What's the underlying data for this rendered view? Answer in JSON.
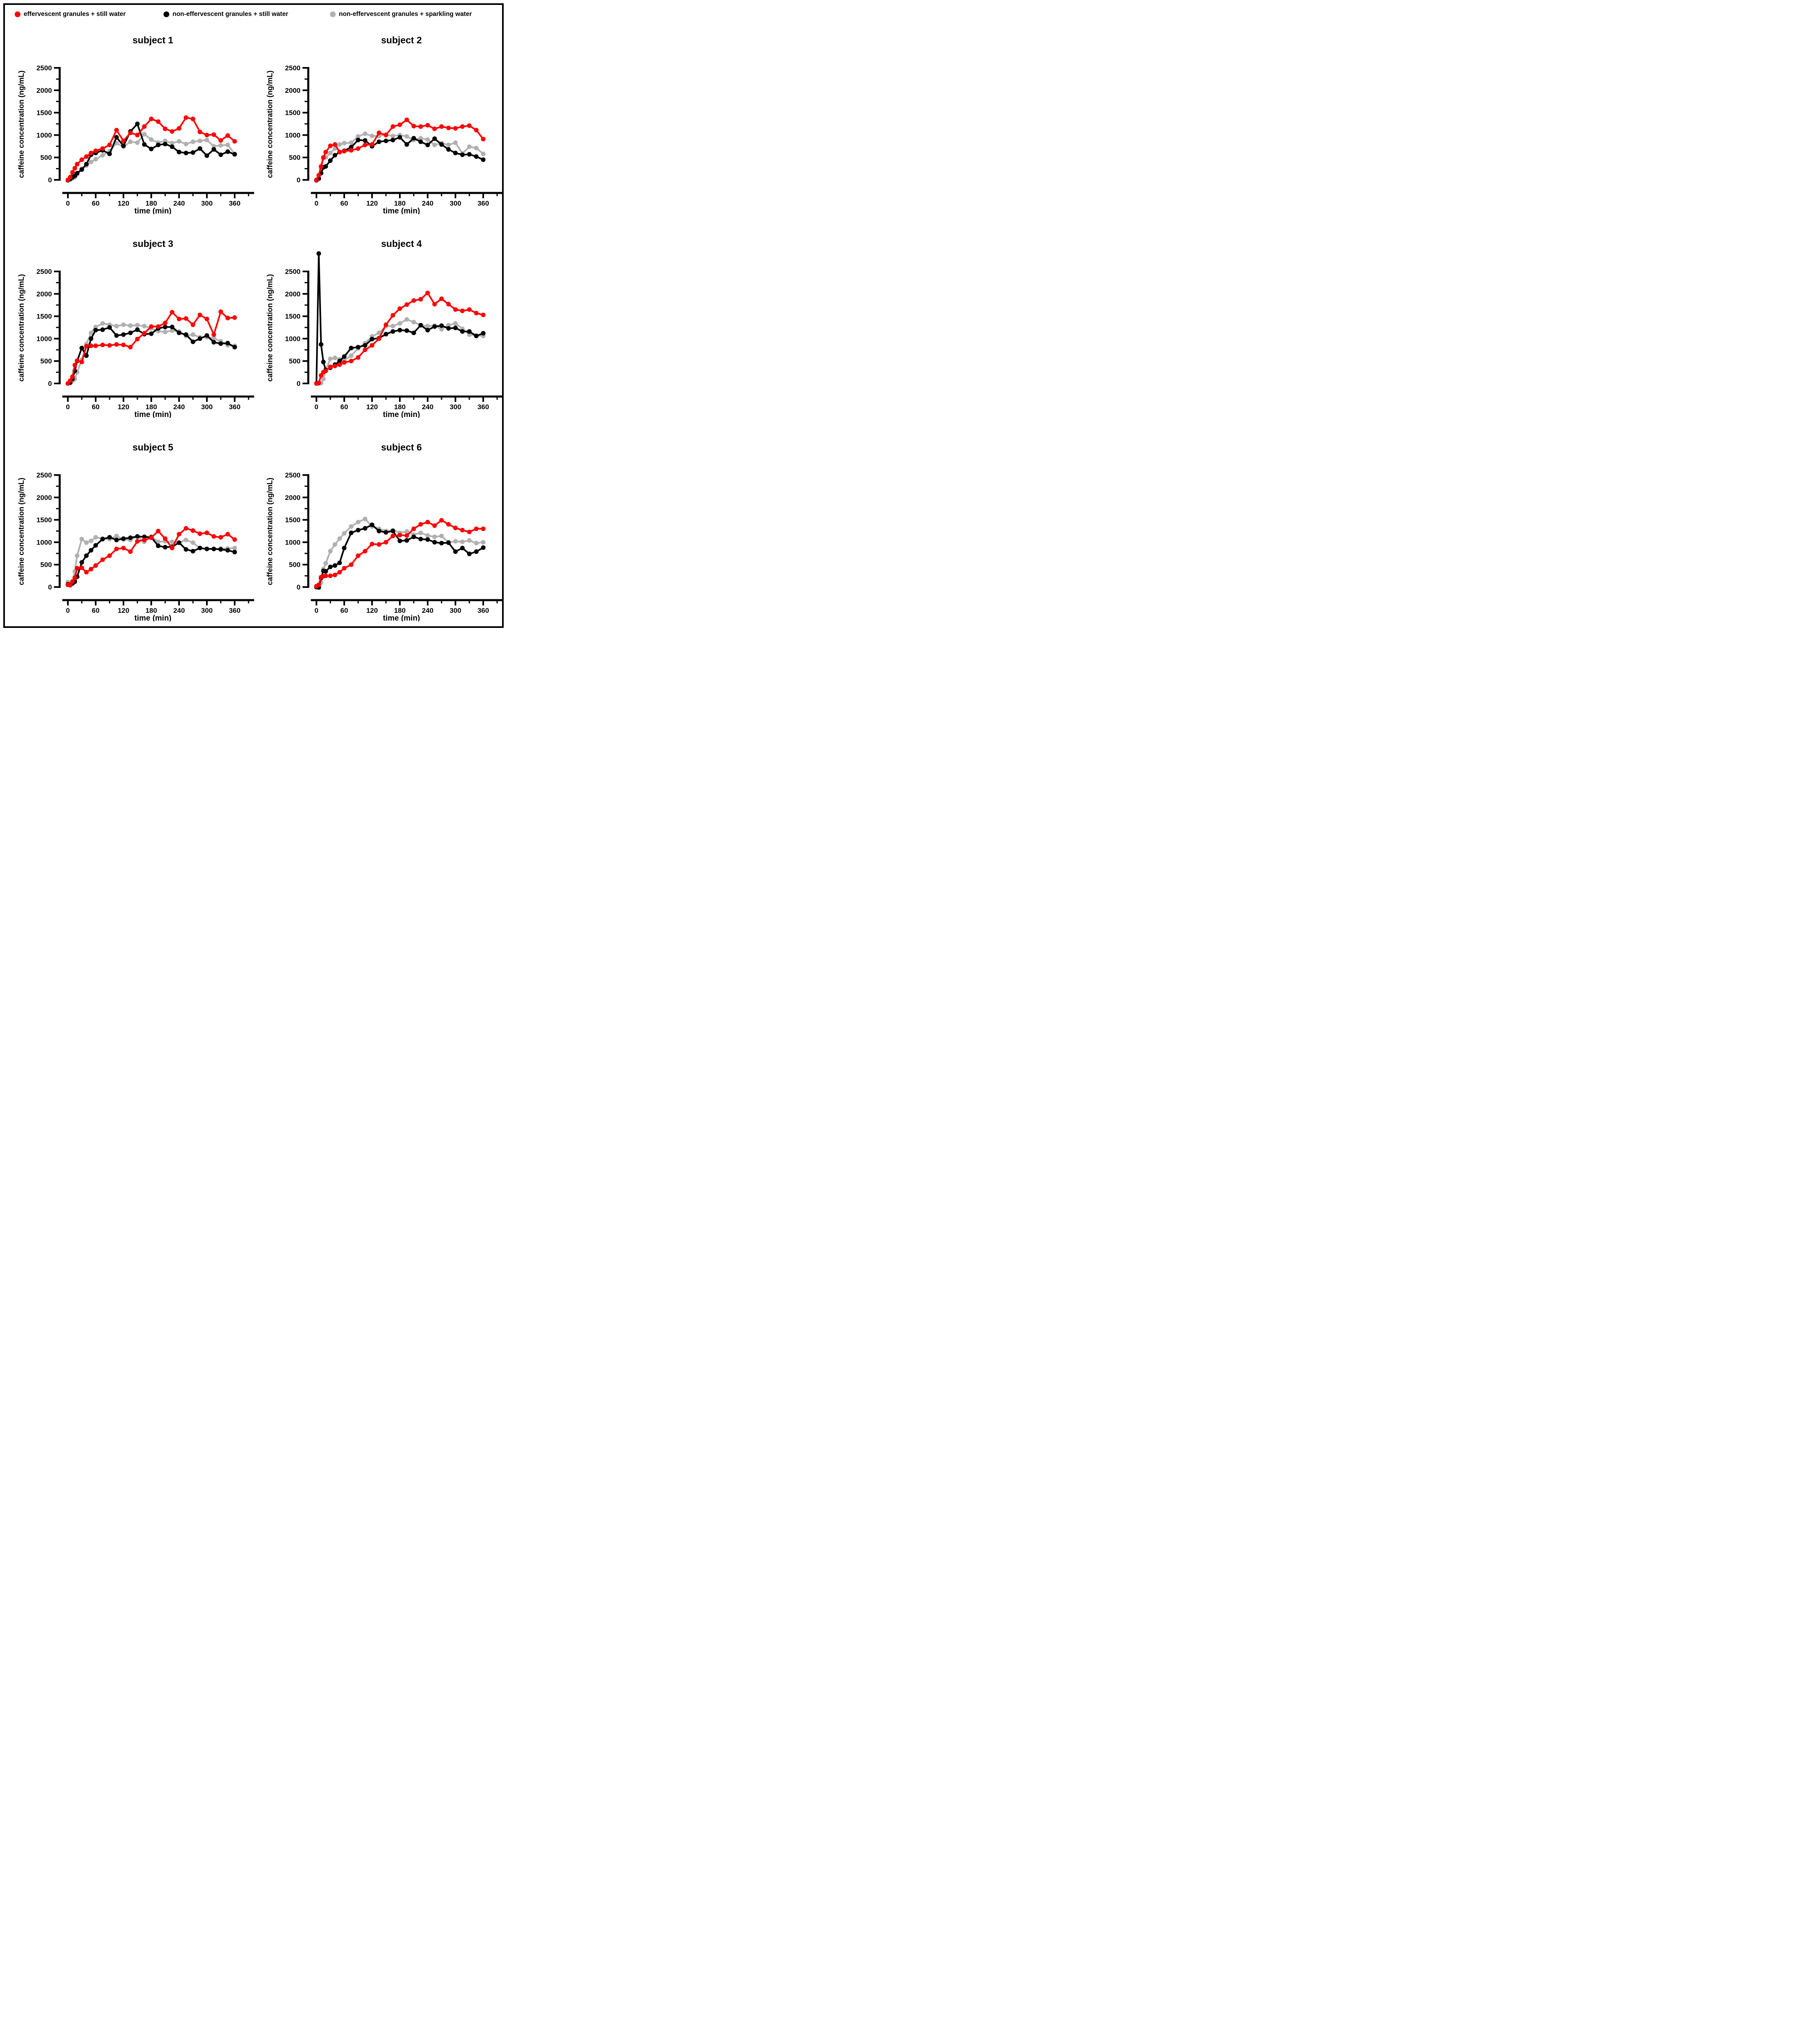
{
  "legend": {
    "items": [
      {
        "label": "effervescent granules + still water",
        "color": "#ff0000"
      },
      {
        "label": "non-effervescent granules + still water",
        "color": "#000000"
      },
      {
        "label": "non-effervescent granules + sparkling water",
        "color": "#b0b0b0"
      }
    ]
  },
  "axes": {
    "xlabel": "time (min)",
    "ylabel": "caffeine concentration (ng/mL)",
    "xlim": [
      -12,
      402
    ],
    "ylim": [
      0,
      2500
    ],
    "xticks": [
      0,
      60,
      120,
      180,
      240,
      300,
      360
    ],
    "xminor": [
      30,
      90,
      150,
      210,
      270,
      330,
      390
    ],
    "yticks": [
      0,
      500,
      1000,
      1500,
      2000,
      2500
    ],
    "yminor": [
      250,
      750,
      1250,
      1750,
      2250
    ],
    "grid": false,
    "legend_position": "top"
  },
  "time_min": [
    0,
    5,
    10,
    15,
    20,
    30,
    40,
    50,
    60,
    75,
    90,
    105,
    120,
    135,
    150,
    165,
    180,
    195,
    210,
    225,
    240,
    255,
    270,
    285,
    300,
    315,
    330,
    345,
    360
  ],
  "chart_data": [
    {
      "type": "line",
      "title": "subject 1",
      "series": [
        {
          "name": "effervescent granules + still water",
          "color": "#ff0000",
          "values": [
            0,
            60,
            170,
            260,
            350,
            450,
            520,
            600,
            650,
            700,
            780,
            1110,
            870,
            1050,
            1000,
            1190,
            1360,
            1300,
            1140,
            1080,
            1150,
            1390,
            1360,
            1070,
            1000,
            1010,
            880,
            990,
            860
          ]
        },
        {
          "name": "non-effervescent granules + still water",
          "color": "#000000",
          "values": [
            -10,
            20,
            60,
            90,
            150,
            230,
            350,
            560,
            600,
            660,
            580,
            950,
            760,
            1080,
            1250,
            790,
            690,
            780,
            800,
            740,
            620,
            600,
            610,
            700,
            540,
            680,
            560,
            630,
            570
          ]
        },
        {
          "name": "non-effervescent granules + sparkling water",
          "color": "#b0b0b0",
          "values": [
            0,
            10,
            30,
            60,
            120,
            250,
            320,
            400,
            460,
            550,
            640,
            820,
            740,
            850,
            830,
            1020,
            900,
            830,
            870,
            820,
            860,
            800,
            850,
            870,
            890,
            750,
            770,
            780,
            580
          ]
        }
      ]
    },
    {
      "type": "line",
      "title": "subject 2",
      "series": [
        {
          "name": "effervescent granules + still water",
          "color": "#ff0000",
          "values": [
            0,
            100,
            300,
            500,
            620,
            760,
            790,
            620,
            640,
            660,
            700,
            780,
            790,
            1050,
            1000,
            1190,
            1230,
            1340,
            1200,
            1190,
            1220,
            1140,
            1190,
            1160,
            1150,
            1190,
            1210,
            1110,
            910
          ]
        },
        {
          "name": "non-effervescent granules + still water",
          "color": "#000000",
          "values": [
            -10,
            30,
            150,
            280,
            300,
            430,
            550,
            620,
            650,
            730,
            890,
            880,
            750,
            850,
            870,
            890,
            950,
            790,
            930,
            850,
            780,
            920,
            790,
            680,
            600,
            560,
            570,
            520,
            450
          ]
        },
        {
          "name": "non-effervescent granules + sparkling water",
          "color": "#b0b0b0",
          "values": [
            0,
            20,
            250,
            480,
            500,
            600,
            700,
            790,
            820,
            830,
            970,
            1030,
            980,
            980,
            1010,
            980,
            1000,
            970,
            890,
            930,
            900,
            780,
            820,
            780,
            830,
            590,
            740,
            710,
            580
          ]
        }
      ]
    },
    {
      "type": "line",
      "title": "subject 3",
      "series": [
        {
          "name": "effervescent granules + still water",
          "color": "#ff0000",
          "values": [
            0,
            60,
            150,
            410,
            510,
            480,
            830,
            840,
            840,
            860,
            850,
            870,
            860,
            810,
            990,
            1120,
            1270,
            1270,
            1350,
            1590,
            1440,
            1450,
            1310,
            1530,
            1440,
            1090,
            1600,
            1460,
            1470
          ]
        },
        {
          "name": "non-effervescent granules + still water",
          "color": "#000000",
          "values": [
            0,
            20,
            100,
            280,
            500,
            790,
            620,
            1000,
            1190,
            1200,
            1250,
            1070,
            1090,
            1130,
            1200,
            1100,
            1110,
            1230,
            1260,
            1260,
            1130,
            1090,
            930,
            1000,
            1070,
            920,
            890,
            900,
            810
          ]
        },
        {
          "name": "non-effervescent granules + sparkling water",
          "color": "#b0b0b0",
          "values": [
            0,
            10,
            60,
            100,
            250,
            530,
            880,
            1130,
            1260,
            1340,
            1310,
            1280,
            1310,
            1290,
            1300,
            1280,
            1230,
            1170,
            1150,
            1180,
            1160,
            1060,
            1090,
            1030,
            1030,
            1010,
            940,
            850,
            840
          ]
        }
      ]
    },
    {
      "type": "line",
      "title": "subject 4",
      "series": [
        {
          "name": "effervescent granules + still water",
          "color": "#ff0000",
          "values": [
            0,
            10,
            180,
            250,
            280,
            370,
            390,
            420,
            470,
            500,
            580,
            750,
            850,
            1000,
            1310,
            1520,
            1670,
            1760,
            1850,
            1880,
            2020,
            1770,
            1890,
            1770,
            1650,
            1620,
            1650,
            1570,
            1530
          ]
        },
        {
          "name": "non-effervescent granules + still water",
          "color": "#000000",
          "values": [
            0,
            2900,
            870,
            480,
            300,
            350,
            420,
            500,
            600,
            790,
            810,
            850,
            990,
            1010,
            1100,
            1160,
            1190,
            1180,
            1130,
            1300,
            1190,
            1270,
            1290,
            1230,
            1240,
            1160,
            1160,
            1060,
            1120
          ]
        },
        {
          "name": "non-effervescent granules + sparkling water",
          "color": "#b0b0b0",
          "values": [
            0,
            0,
            10,
            100,
            300,
            550,
            570,
            540,
            520,
            620,
            780,
            900,
            1050,
            1130,
            1280,
            1280,
            1340,
            1430,
            1370,
            1300,
            1280,
            1290,
            1210,
            1300,
            1340,
            1220,
            1090,
            1070,
            1060
          ]
        }
      ]
    },
    {
      "type": "line",
      "title": "subject 5",
      "series": [
        {
          "name": "effervescent granules + still water",
          "color": "#ff0000",
          "values": [
            50,
            40,
            120,
            210,
            420,
            430,
            330,
            400,
            480,
            610,
            700,
            850,
            870,
            790,
            1020,
            1050,
            1100,
            1250,
            1080,
            870,
            1180,
            1310,
            1260,
            1190,
            1210,
            1130,
            1110,
            1180,
            1060
          ]
        },
        {
          "name": "non-effervescent granules + still water",
          "color": "#000000",
          "values": [
            60,
            50,
            80,
            120,
            230,
            550,
            700,
            820,
            930,
            1070,
            1110,
            1050,
            1080,
            1100,
            1130,
            1120,
            1110,
            920,
            890,
            900,
            990,
            840,
            800,
            870,
            850,
            850,
            840,
            820,
            780
          ]
        },
        {
          "name": "non-effervescent granules + sparkling water",
          "color": "#b0b0b0",
          "values": [
            110,
            90,
            130,
            350,
            700,
            1070,
            990,
            1030,
            1110,
            1080,
            1070,
            1140,
            1060,
            1050,
            1130,
            1010,
            1130,
            1010,
            1020,
            1010,
            990,
            1050,
            990,
            870,
            850,
            850,
            860,
            860,
            870
          ]
        }
      ]
    },
    {
      "type": "line",
      "title": "subject 6",
      "series": [
        {
          "name": "effervescent granules + still water",
          "color": "#ff0000",
          "values": [
            20,
            50,
            220,
            240,
            250,
            250,
            270,
            330,
            420,
            500,
            700,
            800,
            960,
            950,
            1000,
            1140,
            1160,
            1150,
            1300,
            1400,
            1450,
            1370,
            1490,
            1400,
            1320,
            1270,
            1230,
            1300,
            1300
          ]
        },
        {
          "name": "non-effervescent granules + still water",
          "color": "#000000",
          "values": [
            0,
            -10,
            200,
            360,
            350,
            450,
            480,
            540,
            870,
            1210,
            1270,
            1310,
            1390,
            1250,
            1220,
            1250,
            1030,
            1040,
            1120,
            1070,
            1060,
            1000,
            980,
            990,
            790,
            870,
            740,
            790,
            880
          ]
        },
        {
          "name": "non-effervescent granules + sparkling water",
          "color": "#b0b0b0",
          "values": [
            0,
            0,
            100,
            400,
            530,
            800,
            950,
            1080,
            1200,
            1350,
            1450,
            1520,
            1350,
            1300,
            1250,
            1270,
            1210,
            1240,
            1170,
            1210,
            1150,
            1120,
            1140,
            1000,
            1020,
            1010,
            1040,
            980,
            1000
          ]
        }
      ]
    }
  ]
}
